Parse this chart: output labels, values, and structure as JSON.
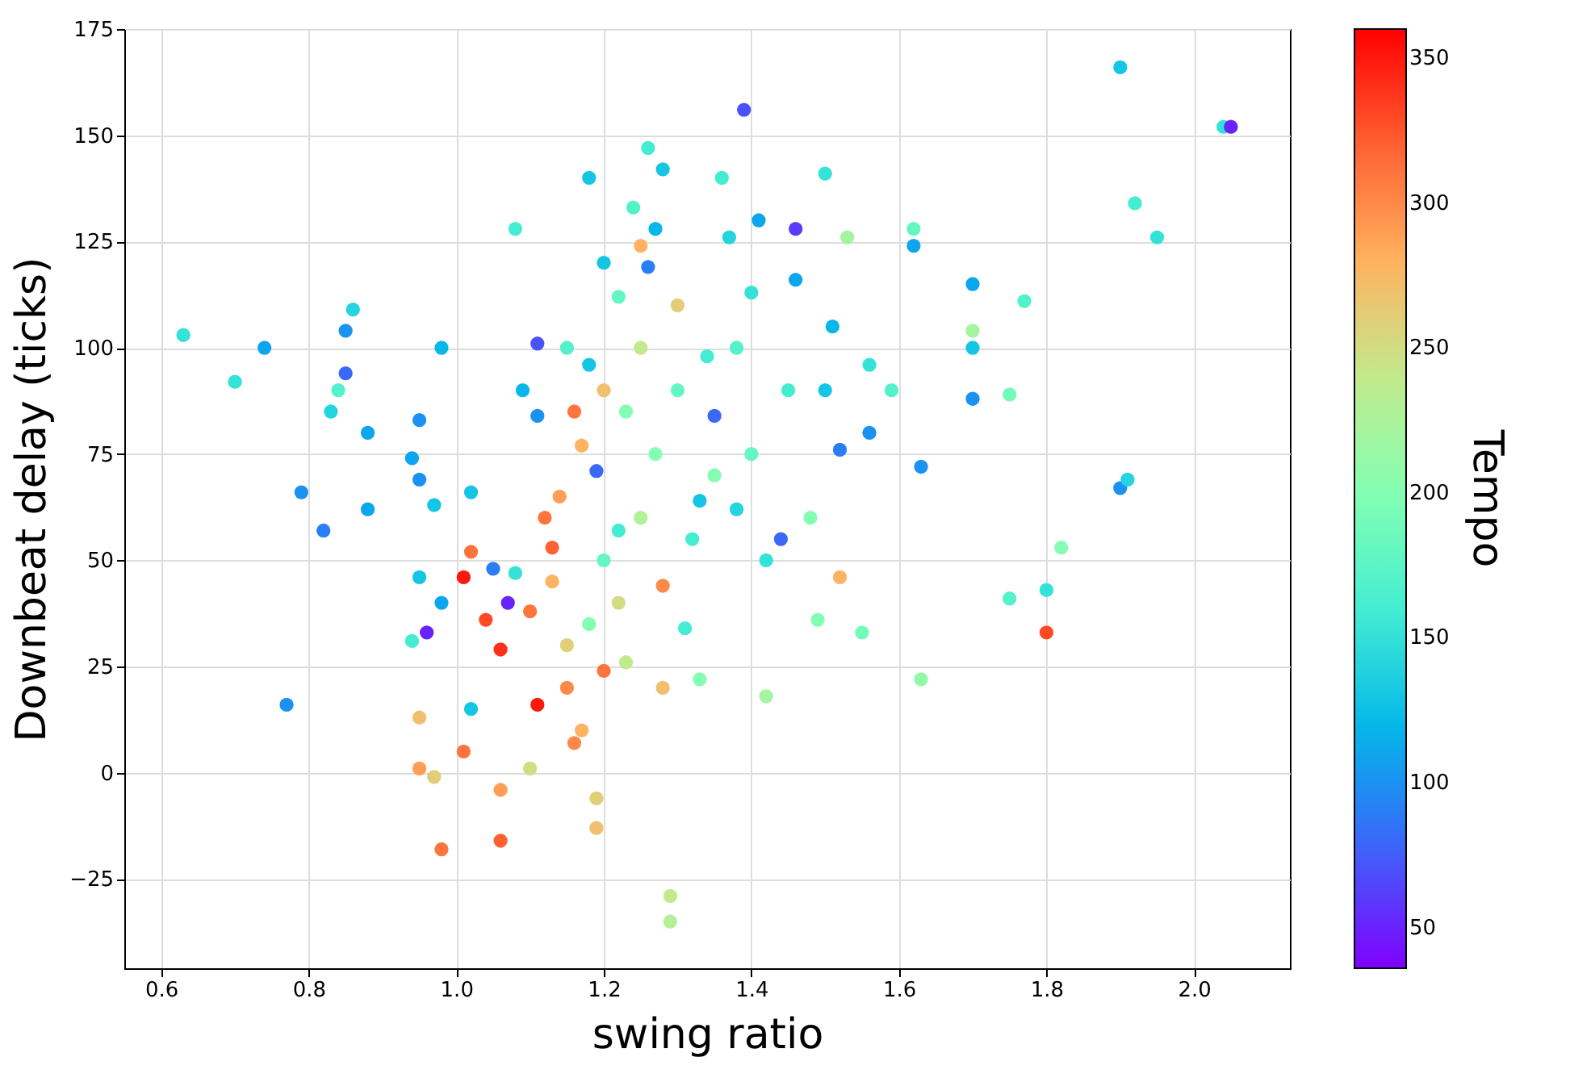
{
  "chart_data": {
    "type": "scatter",
    "xlabel": "swing ratio",
    "ylabel": "Downbeat delay (ticks)",
    "clabel": "Tempo",
    "marker": "circle",
    "grid": true,
    "xlim": [
      0.55,
      2.13
    ],
    "ylim": [
      -46,
      175
    ],
    "clim": [
      36,
      360
    ],
    "xticks": [
      {
        "value": 0.6,
        "label": "0.6"
      },
      {
        "value": 0.8,
        "label": "0.8"
      },
      {
        "value": 1.0,
        "label": "1.0"
      },
      {
        "value": 1.2,
        "label": "1.2"
      },
      {
        "value": 1.4,
        "label": "1.4"
      },
      {
        "value": 1.6,
        "label": "1.6"
      },
      {
        "value": 1.8,
        "label": "1.8"
      },
      {
        "value": 2.0,
        "label": "2.0"
      }
    ],
    "yticks": [
      -25,
      0,
      25,
      50,
      75,
      100,
      125,
      150,
      175
    ],
    "cticks": [
      50,
      100,
      150,
      200,
      250,
      300,
      350
    ],
    "x": [
      0.63,
      0.7,
      0.74,
      0.77,
      0.79,
      0.82,
      0.83,
      0.84,
      0.85,
      0.85,
      0.86,
      0.88,
      0.88,
      0.94,
      0.94,
      0.95,
      0.95,
      0.95,
      0.96,
      0.97,
      0.98,
      0.98,
      0.95,
      0.95,
      0.97,
      0.98,
      1.01,
      1.01,
      1.02,
      1.02,
      1.02,
      1.04,
      1.05,
      1.06,
      1.06,
      1.06,
      1.07,
      1.08,
      1.09,
      1.1,
      1.11,
      1.11,
      1.11,
      1.12,
      1.13,
      1.15,
      1.16,
      1.16,
      1.17,
      1.18,
      1.18,
      1.19,
      1.19,
      1.19,
      1.2,
      1.2,
      1.22,
      1.22,
      1.23,
      1.24,
      1.25,
      1.26,
      1.26,
      1.27,
      1.28,
      1.28,
      1.29,
      1.29,
      1.3,
      1.31,
      1.33,
      1.34,
      1.35,
      1.36,
      1.37,
      1.39,
      1.4,
      1.41,
      1.42,
      1.44,
      1.46,
      1.46,
      1.49,
      1.5,
      1.51,
      1.52,
      1.52,
      1.53,
      1.55,
      1.56,
      1.56,
      1.59,
      1.62,
      1.62,
      1.63,
      1.63,
      1.7,
      1.7,
      1.7,
      1.7,
      1.75,
      1.75,
      1.77,
      1.8,
      1.8,
      1.82,
      1.9,
      1.9,
      1.91,
      1.92,
      1.95,
      2.04,
      2.05,
      1.13,
      1.15,
      1.18,
      1.2,
      1.22,
      1.25,
      1.27,
      1.3,
      1.32,
      1.35,
      1.38,
      1.4,
      1.45,
      1.48,
      1.25,
      1.2,
      1.1,
      1.14,
      1.17,
      1.23,
      1.28,
      1.33,
      1.42,
      1.5,
      1.38,
      1.15,
      1.08
    ],
    "values": [
      103,
      92,
      100,
      16,
      66,
      57,
      85,
      90,
      94,
      104,
      109,
      80,
      62,
      74,
      31,
      46,
      83,
      69,
      33,
      63,
      100,
      40,
      13,
      1,
      -1,
      -18,
      46,
      5,
      52,
      66,
      15,
      36,
      48,
      29,
      -16,
      -4,
      40,
      128,
      90,
      1,
      101,
      16,
      84,
      60,
      53,
      30,
      85,
      7,
      77,
      96,
      140,
      71,
      -6,
      -13,
      24,
      120,
      57,
      112,
      85,
      133,
      124,
      147,
      119,
      128,
      142,
      44,
      -29,
      -35,
      110,
      34,
      64,
      98,
      84,
      140,
      126,
      156,
      113,
      130,
      18,
      55,
      128,
      116,
      36,
      141,
      105,
      76,
      46,
      126,
      33,
      80,
      96,
      90,
      124,
      128,
      72,
      22,
      104,
      100,
      88,
      115,
      89,
      41,
      111,
      43,
      33,
      53,
      166,
      67,
      69,
      134,
      126,
      152,
      152,
      45,
      20,
      35,
      50,
      40,
      60,
      75,
      90,
      55,
      70,
      100,
      75,
      90,
      60,
      100,
      90,
      38,
      65,
      10,
      26,
      20,
      22,
      50,
      90,
      62,
      100,
      47
    ],
    "cvalues": [
      150,
      150,
      110,
      100,
      100,
      90,
      140,
      170,
      80,
      100,
      140,
      110,
      110,
      110,
      160,
      130,
      100,
      100,
      50,
      130,
      120,
      110,
      270,
      290,
      260,
      310,
      350,
      310,
      310,
      130,
      130,
      330,
      90,
      340,
      320,
      290,
      50,
      160,
      120,
      250,
      70,
      350,
      100,
      310,
      320,
      260,
      310,
      300,
      280,
      130,
      130,
      80,
      260,
      270,
      310,
      130,
      160,
      180,
      200,
      170,
      280,
      160,
      90,
      120,
      130,
      300,
      240,
      230,
      260,
      160,
      130,
      160,
      80,
      160,
      140,
      70,
      150,
      110,
      220,
      80,
      60,
      110,
      200,
      150,
      120,
      90,
      280,
      220,
      190,
      100,
      150,
      170,
      110,
      180,
      100,
      210,
      220,
      130,
      100,
      110,
      190,
      170,
      170,
      150,
      330,
      200,
      130,
      100,
      140,
      160,
      150,
      150,
      50,
      280,
      300,
      200,
      180,
      250,
      230,
      200,
      180,
      160,
      200,
      170,
      180,
      160,
      200,
      240,
      270,
      310,
      290,
      280,
      240,
      270,
      200,
      150,
      130,
      140,
      170,
      150
    ]
  }
}
